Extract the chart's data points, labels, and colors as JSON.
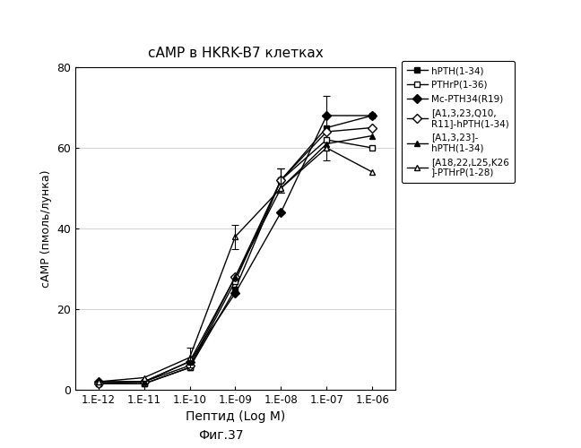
{
  "title": "cAMP в HKRK-B7 клетках",
  "xlabel": "Пептид (Log M)",
  "ylabel": "сАМР (пмоль/лунка)",
  "figcaption": "Фиг.37",
  "ylim": [
    0,
    80
  ],
  "yticks": [
    0,
    20,
    40,
    60,
    80
  ],
  "xtick_labels": [
    "1.E-12",
    "1.E-11",
    "1.E-10",
    "1.E-09",
    "1.E-08",
    "1.E-07",
    "1.E-06"
  ],
  "x_values": [
    -12,
    -11,
    -10,
    -9,
    -8,
    -7,
    -6
  ],
  "series": [
    {
      "label": "hPTH(1-34)",
      "marker": "s",
      "fillstyle": "full",
      "y": [
        1.5,
        1.5,
        5.5,
        25,
        52,
        65,
        68
      ],
      "yerr": [
        0,
        0,
        0,
        0,
        3,
        8,
        0
      ]
    },
    {
      "label": "PTHrP(1-36)",
      "marker": "s",
      "fillstyle": "none",
      "y": [
        1.5,
        1.5,
        5.5,
        27,
        52,
        62,
        60
      ],
      "yerr": [
        0,
        0,
        0,
        0,
        3,
        0,
        0
      ]
    },
    {
      "label": "Mc-PTH34(R19)",
      "marker": "D",
      "fillstyle": "full",
      "y": [
        2.0,
        2.0,
        7.0,
        24,
        44,
        68,
        68
      ],
      "yerr": [
        0,
        0,
        0,
        0,
        0,
        0,
        0
      ]
    },
    {
      "label": "[A1,3,23,Q10,\nR11]-hPTH(1-34)",
      "marker": "D",
      "fillstyle": "none",
      "y": [
        1.5,
        2.0,
        6.0,
        28,
        52,
        64,
        65
      ],
      "yerr": [
        0,
        0,
        0,
        0,
        3,
        0,
        0
      ]
    },
    {
      "label": "[A1,3,23]-\nhPTH(1-34)",
      "marker": "^",
      "fillstyle": "full",
      "y": [
        2.0,
        2.0,
        7.0,
        28,
        50,
        61,
        63
      ],
      "yerr": [
        0,
        0,
        0,
        0,
        0,
        0,
        0
      ]
    },
    {
      "label": "[A18,22,L25,K26\n]-PTHrP(1-28)",
      "marker": "^",
      "fillstyle": "none",
      "y": [
        2.0,
        3.0,
        8.0,
        38,
        50,
        60,
        54
      ],
      "yerr": [
        0,
        0,
        2.5,
        3,
        0,
        0,
        0
      ]
    }
  ]
}
